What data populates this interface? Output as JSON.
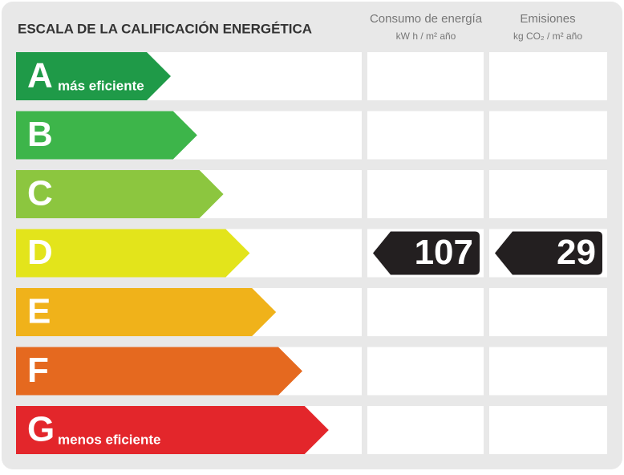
{
  "title": "ESCALA DE LA CALIFICACIÓN ENERGÉTICA",
  "columns": [
    {
      "title": "Consumo de energía",
      "unit": "kW h / m² año"
    },
    {
      "title": "Emisiones",
      "unit": "kg CO₂ / m² año"
    }
  ],
  "ratings": [
    {
      "letter": "A",
      "label": "más eficiente",
      "color": "#1f9a48"
    },
    {
      "letter": "B",
      "color": "#3db54a"
    },
    {
      "letter": "C",
      "color": "#8cc63f"
    },
    {
      "letter": "D",
      "color": "#e3e41b"
    },
    {
      "letter": "E",
      "color": "#f0b21a"
    },
    {
      "letter": "F",
      "color": "#e5691f"
    },
    {
      "letter": "G",
      "label": "menos eficiente",
      "color": "#e3262b"
    }
  ],
  "current": {
    "letter": "D",
    "consumption": 107,
    "emissions": 29
  }
}
